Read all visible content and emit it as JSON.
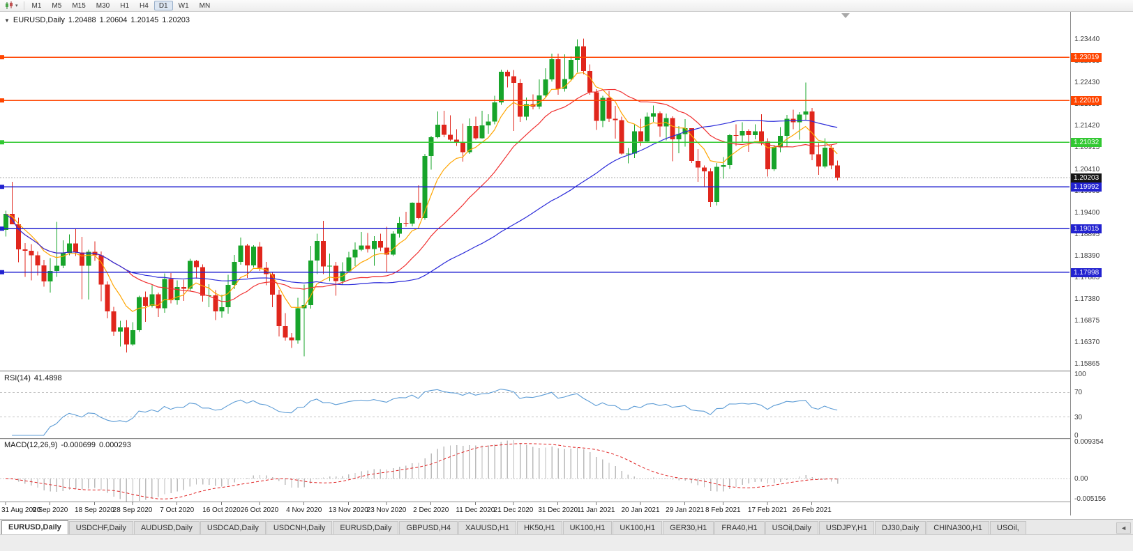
{
  "toolbar": {
    "dropdown_glyph": "▾",
    "timeframes": [
      "M1",
      "M5",
      "M15",
      "M30",
      "H1",
      "H4",
      "D1",
      "W1",
      "MN"
    ],
    "active_timeframe": "D1"
  },
  "chart_header": {
    "collapse_glyph": "▼",
    "symbol": "EURUSD,Daily",
    "open": "1.20488",
    "high": "1.20604",
    "low": "1.20145",
    "close": "1.20203"
  },
  "indicators": {
    "rsi": {
      "title": "RSI(14)",
      "value": "41.4898"
    },
    "macd": {
      "title": "MACD(12,26,9)",
      "main_value": "-0.000699",
      "signal_value": "0.000293"
    }
  },
  "chart_data": {
    "type": "candlestick",
    "symbol": "EURUSD",
    "timeframe": "Daily",
    "grid": "off",
    "y_range": [
      1.157,
      1.239
    ],
    "price_axis_ticks": [
      "1.23440",
      "1.22935",
      "1.22430",
      "1.21925",
      "1.21420",
      "1.20915",
      "1.20410",
      "1.19905",
      "1.19400",
      "1.18895",
      "1.18390",
      "1.17885",
      "1.17380",
      "1.16875",
      "1.16370",
      "1.15865"
    ],
    "colors": {
      "up": "#17A42A",
      "down": "#E0261C"
    },
    "x_labels": [
      {
        "bar": 0,
        "label": "31 Aug 2020"
      },
      {
        "bar": 7,
        "label": "9 Sep 2020"
      },
      {
        "bar": 14,
        "label": "18 Sep 2020"
      },
      {
        "bar": 20,
        "label": "28 Sep 2020"
      },
      {
        "bar": 27,
        "label": "7 Oct 2020"
      },
      {
        "bar": 34,
        "label": "16 Oct 2020"
      },
      {
        "bar": 40,
        "label": "26 Oct 2020"
      },
      {
        "bar": 47,
        "label": "4 Nov 2020"
      },
      {
        "bar": 54,
        "label": "13 Nov 2020"
      },
      {
        "bar": 60,
        "label": "23 Nov 2020"
      },
      {
        "bar": 67,
        "label": "2 Dec 2020"
      },
      {
        "bar": 74,
        "label": "11 Dec 2020"
      },
      {
        "bar": 80,
        "label": "21 Dec 2020"
      },
      {
        "bar": 87,
        "label": "31 Dec 2020"
      },
      {
        "bar": 93,
        "label": "11 Jan 2021"
      },
      {
        "bar": 100,
        "label": "20 Jan 2021"
      },
      {
        "bar": 107,
        "label": "29 Jan 2021"
      },
      {
        "bar": 113,
        "label": "8 Feb 2021"
      },
      {
        "bar": 120,
        "label": "17 Feb 2021"
      },
      {
        "bar": 127,
        "label": "26 Feb 2021"
      }
    ],
    "candles": [
      [
        1.1899,
        1.1943,
        1.1883,
        1.1936
      ],
      [
        1.1936,
        1.2011,
        1.193,
        1.1912
      ],
      [
        1.1912,
        1.1927,
        1.1823,
        1.1853
      ],
      [
        1.1853,
        1.1868,
        1.1789,
        1.185
      ],
      [
        1.185,
        1.1865,
        1.1781,
        1.1839
      ],
      [
        1.1839,
        1.1848,
        1.1792,
        1.1816
      ],
      [
        1.1816,
        1.1829,
        1.1766,
        1.1778
      ],
      [
        1.1778,
        1.1833,
        1.1752,
        1.1803
      ],
      [
        1.1803,
        1.1917,
        1.1789,
        1.1815
      ],
      [
        1.1815,
        1.1874,
        1.1809,
        1.1845
      ],
      [
        1.1845,
        1.1888,
        1.1839,
        1.1867
      ],
      [
        1.1867,
        1.19,
        1.1838,
        1.1846
      ],
      [
        1.1846,
        1.1882,
        1.1737,
        1.1815
      ],
      [
        1.1815,
        1.1852,
        1.1736,
        1.1847
      ],
      [
        1.1847,
        1.1872,
        1.1826,
        1.1839
      ],
      [
        1.1839,
        1.1848,
        1.1732,
        1.1771
      ],
      [
        1.1771,
        1.1778,
        1.1692,
        1.1708
      ],
      [
        1.1708,
        1.1719,
        1.1651,
        1.1661
      ],
      [
        1.1661,
        1.1686,
        1.1626,
        1.1671
      ],
      [
        1.1671,
        1.1688,
        1.1612,
        1.1631
      ],
      [
        1.1631,
        1.1683,
        1.1628,
        1.1664
      ],
      [
        1.1664,
        1.1745,
        1.166,
        1.1742
      ],
      [
        1.1742,
        1.1755,
        1.1684,
        1.1721
      ],
      [
        1.1721,
        1.1769,
        1.1717,
        1.1748
      ],
      [
        1.1748,
        1.1752,
        1.1695,
        1.1716
      ],
      [
        1.1716,
        1.1797,
        1.1705,
        1.1784
      ],
      [
        1.1784,
        1.1798,
        1.1727,
        1.1734
      ],
      [
        1.1734,
        1.1781,
        1.1724,
        1.1765
      ],
      [
        1.1765,
        1.1782,
        1.1733,
        1.1761
      ],
      [
        1.1761,
        1.1831,
        1.1755,
        1.1826
      ],
      [
        1.1826,
        1.1829,
        1.1785,
        1.1812
      ],
      [
        1.1812,
        1.1818,
        1.1731,
        1.1745
      ],
      [
        1.1745,
        1.1772,
        1.1718,
        1.1746
      ],
      [
        1.1746,
        1.1758,
        1.1688,
        1.1708
      ],
      [
        1.1708,
        1.1747,
        1.1694,
        1.1718
      ],
      [
        1.1718,
        1.1794,
        1.1703,
        1.177
      ],
      [
        1.177,
        1.184,
        1.176,
        1.1824
      ],
      [
        1.1824,
        1.1881,
        1.1817,
        1.1862
      ],
      [
        1.1862,
        1.1866,
        1.1786,
        1.1816
      ],
      [
        1.1816,
        1.1863,
        1.1811,
        1.186
      ],
      [
        1.186,
        1.187,
        1.1803,
        1.181
      ],
      [
        1.181,
        1.1824,
        1.1769,
        1.1795
      ],
      [
        1.1795,
        1.18,
        1.1718,
        1.1747
      ],
      [
        1.1747,
        1.1759,
        1.165,
        1.1674
      ],
      [
        1.1674,
        1.1704,
        1.164,
        1.1647
      ],
      [
        1.1647,
        1.1658,
        1.1623,
        1.1641
      ],
      [
        1.1641,
        1.174,
        1.1633,
        1.1716
      ],
      [
        1.1716,
        1.1771,
        1.1603,
        1.1723
      ],
      [
        1.1723,
        1.1861,
        1.1715,
        1.1827
      ],
      [
        1.1827,
        1.189,
        1.1795,
        1.1873
      ],
      [
        1.1873,
        1.192,
        1.1795,
        1.1813
      ],
      [
        1.1813,
        1.1843,
        1.1779,
        1.1815
      ],
      [
        1.1815,
        1.1824,
        1.1745,
        1.1779
      ],
      [
        1.1779,
        1.1823,
        1.1771,
        1.1802
      ],
      [
        1.1802,
        1.1847,
        1.1799,
        1.1834
      ],
      [
        1.1834,
        1.1869,
        1.1814,
        1.1852
      ],
      [
        1.1852,
        1.1894,
        1.1849,
        1.1862
      ],
      [
        1.1862,
        1.1891,
        1.1846,
        1.1854
      ],
      [
        1.1854,
        1.1884,
        1.1815,
        1.1873
      ],
      [
        1.1873,
        1.189,
        1.1849,
        1.1857
      ],
      [
        1.1857,
        1.1906,
        1.18,
        1.1841
      ],
      [
        1.1841,
        1.1895,
        1.1838,
        1.189
      ],
      [
        1.189,
        1.1929,
        1.1881,
        1.1915
      ],
      [
        1.1915,
        1.1941,
        1.1906,
        1.1913
      ],
      [
        1.1913,
        1.1963,
        1.1907,
        1.1962
      ],
      [
        1.1962,
        1.2003,
        1.1923,
        1.1926
      ],
      [
        1.1926,
        1.2076,
        1.1922,
        1.2071
      ],
      [
        1.2071,
        1.2118,
        1.2039,
        1.2115
      ],
      [
        1.2115,
        1.2175,
        1.2113,
        1.2144
      ],
      [
        1.2144,
        1.2177,
        1.2115,
        1.2121
      ],
      [
        1.2121,
        1.2166,
        1.2106,
        1.2109
      ],
      [
        1.2109,
        1.2134,
        1.2095,
        1.2104
      ],
      [
        1.2104,
        1.2147,
        1.2058,
        1.208
      ],
      [
        1.208,
        1.2159,
        1.2076,
        1.2141
      ],
      [
        1.2141,
        1.2163,
        1.2109,
        1.2113
      ],
      [
        1.2113,
        1.2177,
        1.2112,
        1.2143
      ],
      [
        1.2143,
        1.2169,
        1.2123,
        1.2152
      ],
      [
        1.2152,
        1.2212,
        1.2145,
        1.2196
      ],
      [
        1.2196,
        1.2273,
        1.2191,
        1.2268
      ],
      [
        1.2268,
        1.2272,
        1.2231,
        1.2257
      ],
      [
        1.2257,
        1.2272,
        1.213,
        1.2242
      ],
      [
        1.2242,
        1.2251,
        1.2151,
        1.2163
      ],
      [
        1.2163,
        1.2208,
        1.2155,
        1.2192
      ],
      [
        1.2192,
        1.2215,
        1.218,
        1.2187
      ],
      [
        1.2187,
        1.225,
        1.2181,
        1.2213
      ],
      [
        1.2213,
        1.2276,
        1.2208,
        1.225
      ],
      [
        1.225,
        1.231,
        1.2245,
        1.2297
      ],
      [
        1.2297,
        1.231,
        1.2214,
        1.2228
      ],
      [
        1.2228,
        1.2309,
        1.2222,
        1.2251
      ],
      [
        1.2251,
        1.2304,
        1.2246,
        1.2296
      ],
      [
        1.2296,
        1.2344,
        1.2266,
        1.2327
      ],
      [
        1.2327,
        1.2345,
        1.2262,
        1.227
      ],
      [
        1.227,
        1.2285,
        1.2214,
        1.222
      ],
      [
        1.222,
        1.2227,
        1.2132,
        1.2153
      ],
      [
        1.2153,
        1.2212,
        1.2139,
        1.2207
      ],
      [
        1.2207,
        1.2223,
        1.2151,
        1.2158
      ],
      [
        1.2158,
        1.2188,
        1.2112,
        1.2155
      ],
      [
        1.2155,
        1.2163,
        1.2074,
        1.2077
      ],
      [
        1.2077,
        1.209,
        1.2054,
        1.2077
      ],
      [
        1.2077,
        1.2145,
        1.2066,
        1.2129
      ],
      [
        1.2129,
        1.2158,
        1.2095,
        1.2105
      ],
      [
        1.2105,
        1.2173,
        1.2103,
        1.2163
      ],
      [
        1.2163,
        1.2189,
        1.2151,
        1.2171
      ],
      [
        1.2171,
        1.2175,
        1.2116,
        1.214
      ],
      [
        1.214,
        1.217,
        1.2108,
        1.216
      ],
      [
        1.216,
        1.2164,
        1.2059,
        1.211
      ],
      [
        1.211,
        1.2141,
        1.2078,
        1.2122
      ],
      [
        1.2122,
        1.2157,
        1.2093,
        1.2136
      ],
      [
        1.2136,
        1.2136,
        1.2055,
        1.206
      ],
      [
        1.206,
        1.2087,
        1.2011,
        1.2044
      ],
      [
        1.2044,
        1.2049,
        1.1999,
        1.2035
      ],
      [
        1.2035,
        1.2043,
        1.1952,
        1.1964
      ],
      [
        1.1964,
        1.2055,
        1.1956,
        1.2046
      ],
      [
        1.2046,
        1.2069,
        1.2018,
        1.205
      ],
      [
        1.205,
        1.2122,
        1.2041,
        1.212
      ],
      [
        1.212,
        1.2145,
        1.2095,
        1.2119
      ],
      [
        1.2119,
        1.215,
        1.2102,
        1.213
      ],
      [
        1.213,
        1.2134,
        1.2081,
        1.212
      ],
      [
        1.212,
        1.2145,
        1.211,
        1.2129
      ],
      [
        1.2129,
        1.2169,
        1.2096,
        1.2105
      ],
      [
        1.2105,
        1.2113,
        1.2023,
        1.204
      ],
      [
        1.204,
        1.2097,
        1.2036,
        1.2092
      ],
      [
        1.2092,
        1.2139,
        1.208,
        1.2118
      ],
      [
        1.2118,
        1.2167,
        1.2094,
        1.2158
      ],
      [
        1.2158,
        1.2179,
        1.2134,
        1.215
      ],
      [
        1.215,
        1.2174,
        1.2109,
        1.2168
      ],
      [
        1.2168,
        1.2243,
        1.2155,
        1.2175
      ],
      [
        1.2175,
        1.2183,
        1.2061,
        1.2075
      ],
      [
        1.2075,
        1.2101,
        1.2027,
        1.2047
      ],
      [
        1.2047,
        1.2113,
        1.2043,
        1.2091
      ],
      [
        1.2091,
        1.2098,
        1.204,
        1.2049
      ],
      [
        1.20488,
        1.20604,
        1.20145,
        1.20203
      ]
    ],
    "overlays": {
      "moving_averages": [
        {
          "name": "fast-ma",
          "method": "ema",
          "period": 8,
          "color": "#FFA500"
        },
        {
          "name": "mid-ma",
          "method": "sma",
          "period": 20,
          "color": "#F03030"
        },
        {
          "name": "slow-ma",
          "method": "sma",
          "period": 50,
          "color": "#2B2BD9"
        }
      ],
      "horizontal_lines": [
        {
          "label": "1.23019",
          "value": 1.23019,
          "color": "#FF4500"
        },
        {
          "label": "1.22010",
          "value": 1.2201,
          "color": "#FF4500"
        },
        {
          "label": "1.21032",
          "value": 1.21032,
          "color": "#32C832"
        },
        {
          "label": "1.19992",
          "value": 1.19992,
          "color": "#2222D0"
        },
        {
          "label": "1.19015",
          "value": 1.19015,
          "color": "#2222D0"
        },
        {
          "label": "1.17998",
          "value": 1.17998,
          "color": "#2222D0"
        }
      ],
      "current_price": {
        "label": "1.20203",
        "value": 1.20203,
        "tag_bg": "#151515"
      }
    },
    "rsi_pane": {
      "period": 14,
      "levels": [
        70,
        30
      ],
      "axis_ticks": [
        "100",
        "70",
        "30",
        "0"
      ],
      "range": [
        0,
        100
      ],
      "line_color": "#5B9BD5",
      "last_value": 41.4898
    },
    "macd_pane": {
      "fast": 12,
      "slow": 26,
      "signal": 9,
      "axis_ticks": [
        "0.009354",
        "0.00",
        "-0.005156"
      ],
      "range": [
        -0.005156,
        0.009354
      ],
      "histogram_color": "#BBBBBB",
      "signal_color": "#E02020",
      "last_main": -0.000699,
      "last_signal": 0.000293
    }
  },
  "tabs": {
    "items": [
      "EURUSD,Daily",
      "USDCHF,Daily",
      "AUDUSD,Daily",
      "USDCAD,Daily",
      "USDCNH,Daily",
      "EURUSD,Daily",
      "GBPUSD,H4",
      "XAUUSD,H1",
      "HK50,H1",
      "UK100,H1",
      "UK100,H1",
      "GER30,H1",
      "FRA40,H1",
      "USOil,Daily",
      "USDJPY,H1",
      "DJ30,Daily",
      "CHINA300,H1",
      "USOil,"
    ],
    "active_index": 0,
    "scroll_left_glyph": "◄"
  }
}
